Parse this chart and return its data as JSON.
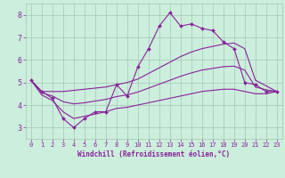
{
  "x": [
    0,
    1,
    2,
    3,
    4,
    5,
    6,
    7,
    8,
    9,
    10,
    11,
    12,
    13,
    14,
    15,
    16,
    17,
    18,
    19,
    20,
    21,
    22,
    23
  ],
  "y_main": [
    5.1,
    4.6,
    4.3,
    3.4,
    3.0,
    3.4,
    3.7,
    3.7,
    4.9,
    4.4,
    5.7,
    6.5,
    7.5,
    8.1,
    7.5,
    7.6,
    7.4,
    7.3,
    6.8,
    6.5,
    5.0,
    4.9,
    4.6,
    4.6
  ],
  "y_upper": [
    5.1,
    4.6,
    4.6,
    4.6,
    4.65,
    4.7,
    4.75,
    4.8,
    4.9,
    5.0,
    5.15,
    5.4,
    5.65,
    5.9,
    6.15,
    6.35,
    6.5,
    6.6,
    6.7,
    6.75,
    6.5,
    5.1,
    4.85,
    4.6
  ],
  "y_lower": [
    5.1,
    4.45,
    4.2,
    3.7,
    3.4,
    3.5,
    3.6,
    3.7,
    3.85,
    3.9,
    4.0,
    4.1,
    4.2,
    4.3,
    4.4,
    4.5,
    4.6,
    4.65,
    4.7,
    4.7,
    4.6,
    4.5,
    4.5,
    4.6
  ],
  "y_mid": [
    5.1,
    4.55,
    4.4,
    4.15,
    4.05,
    4.1,
    4.175,
    4.25,
    4.375,
    4.45,
    4.575,
    4.75,
    4.925,
    5.1,
    5.275,
    5.425,
    5.55,
    5.625,
    5.7,
    5.725,
    5.55,
    4.8,
    4.675,
    4.6
  ],
  "bg_color": "#cceedd",
  "grid_color": "#aaccbb",
  "line_color": "#882299",
  "xlabel": "Windchill (Refroidissement éolien,°C)",
  "xlim": [
    -0.5,
    23.5
  ],
  "ylim": [
    2.5,
    8.5
  ],
  "yticks": [
    3,
    4,
    5,
    6,
    7,
    8
  ],
  "xticks": [
    0,
    1,
    2,
    3,
    4,
    5,
    6,
    7,
    8,
    9,
    10,
    11,
    12,
    13,
    14,
    15,
    16,
    17,
    18,
    19,
    20,
    21,
    22,
    23
  ]
}
